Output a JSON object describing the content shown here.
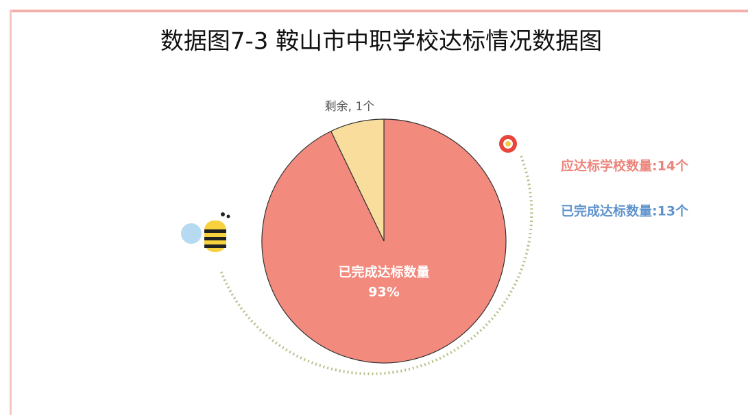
{
  "chart_data": {
    "type": "pie",
    "title": "数据图7-3 鞍山市中职学校达标情况数据图",
    "categories": [
      "已完成达标数量",
      "剩余"
    ],
    "values": [
      13,
      1
    ],
    "value_labels": [
      "93%",
      "1个"
    ],
    "colors": [
      "#f28a7e",
      "#f8dd9d"
    ],
    "annotations": [
      {
        "text": "应达标学校数量:14个",
        "color": "#ec857b"
      },
      {
        "text": "已完成达标数量:13个",
        "color": "#5f93cc"
      }
    ]
  }
}
